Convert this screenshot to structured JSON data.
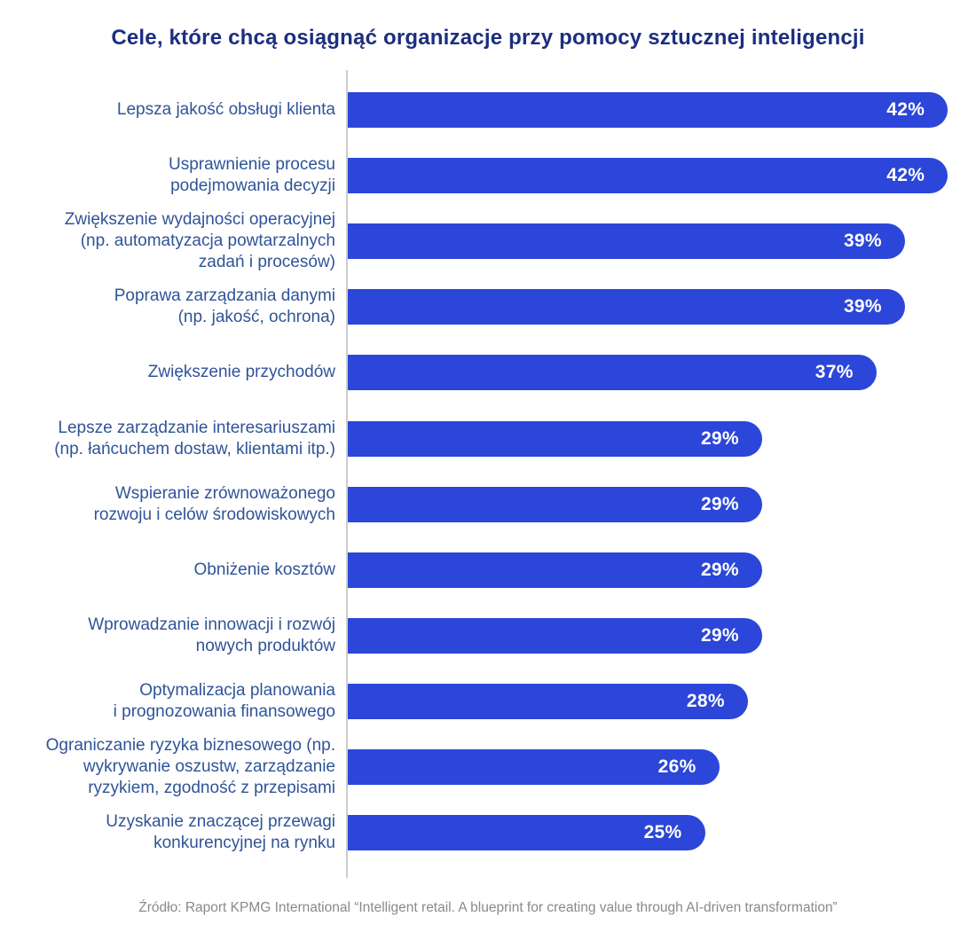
{
  "title": "Cele, które chcą osiągnąć organizacje przy pomocy sztucznej inteligencji",
  "source": "Źródło: Raport KPMG International “Intelligent retail. A blueprint for creating value through AI-driven transformation”",
  "colors": {
    "background": "#ffffff",
    "title": "#1c2e80",
    "label": "#2f5498",
    "bar": "#2b46d8",
    "value_text": "#ffffff",
    "axis": "#cccccc",
    "source_text": "#8a8a8a"
  },
  "chart_data": {
    "type": "bar",
    "orientation": "horizontal",
    "title": "Cele, które chcą osiągnąć organizacje przy pomocy sztucznej inteligencji",
    "xlabel": "",
    "ylabel": "",
    "xlim": [
      0,
      42
    ],
    "grid": false,
    "legend": null,
    "value_suffix": "%",
    "categories": [
      [
        "Lepsza jakość obsługi klienta"
      ],
      [
        "Usprawnienie procesu",
        "podejmowania decyzji"
      ],
      [
        "Zwiększenie wydajności operacyjnej",
        "(np. automatyzacja powtarzalnych",
        "zadań i procesów)"
      ],
      [
        "Poprawa zarządzania danymi",
        "(np. jakość, ochrona)"
      ],
      [
        "Zwiększenie przychodów"
      ],
      [
        "Lepsze zarządzanie interesariuszami",
        "(np. łańcuchem dostaw, klientami itp.)"
      ],
      [
        "Wspieranie zrównoważonego",
        "rozwoju i celów środowiskowych"
      ],
      [
        "Obniżenie kosztów"
      ],
      [
        "Wprowadzanie innowacji i rozwój",
        "nowych produktów"
      ],
      [
        "Optymalizacja planowania",
        "i prognozowania finansowego"
      ],
      [
        "Ograniczanie ryzyka biznesowego (np.",
        "wykrywanie oszustw, zarządzanie",
        "ryzykiem, zgodność z przepisami"
      ],
      [
        "Uzyskanie znaczącej przewagi",
        "konkurencyjnej na rynku"
      ]
    ],
    "values": [
      42,
      42,
      39,
      39,
      37,
      29,
      29,
      29,
      29,
      28,
      26,
      25
    ]
  }
}
